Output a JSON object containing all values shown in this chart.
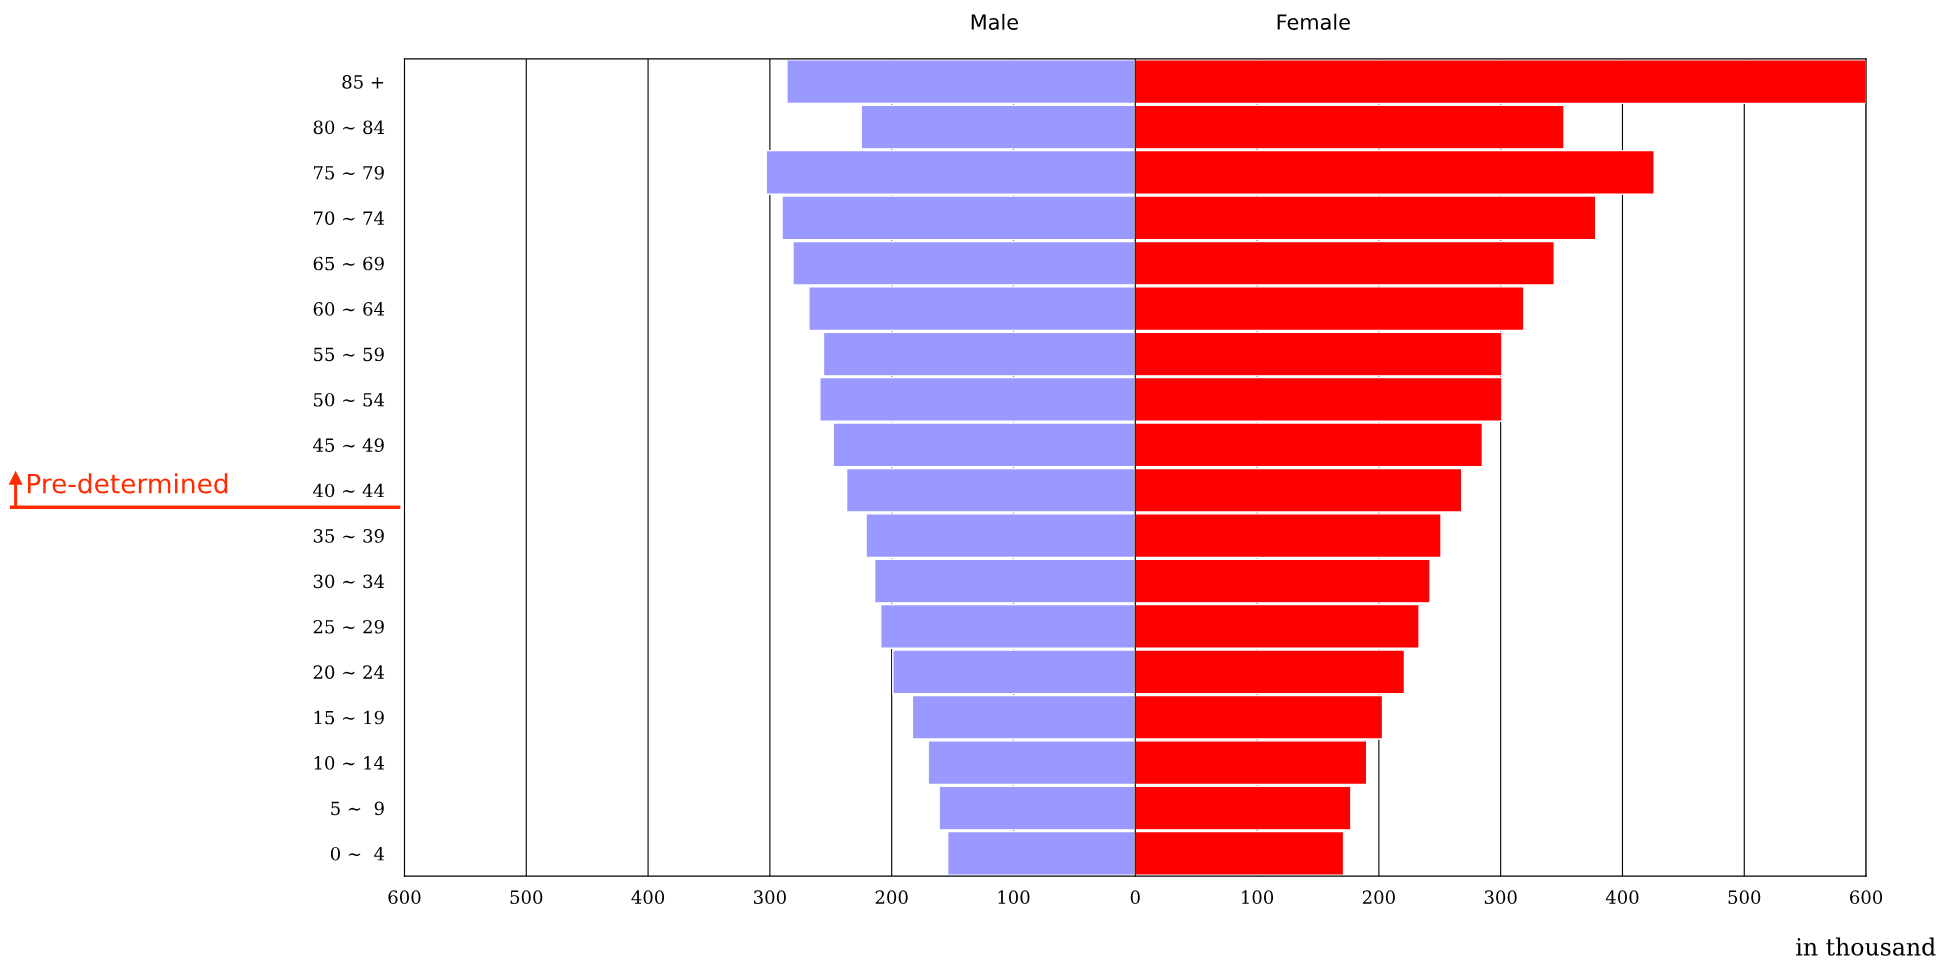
{
  "chart_data": {
    "type": "bar",
    "orientation": "horizontal",
    "stacked": true,
    "xlabel": "in thousand",
    "categories": [
      "85 +",
      "80 ∼ 84",
      "75 ∼ 79",
      "70 ∼ 74",
      "65 ∼ 69",
      "60 ∼ 64",
      "55 ∼ 59",
      "50 ∼ 54",
      "45 ∼ 49",
      "40 ∼ 44",
      "35 ∼ 39",
      "30 ∼ 34",
      "25 ∼ 29",
      "20 ∼ 24",
      "15 ∼ 19",
      "10 ∼ 14",
      "5 ∼  9",
      "0 ∼  4"
    ],
    "series": [
      {
        "name": "Male",
        "color": "#9999ff",
        "values": [
          -286,
          -225,
          -303,
          -290,
          -281,
          -268,
          -256,
          -259,
          -248,
          -237,
          -221,
          -214,
          -209,
          -199,
          -183,
          -170,
          -161,
          -154
        ]
      },
      {
        "name": "Female",
        "color": "#ff0000",
        "values": [
          600,
          352,
          426,
          378,
          344,
          319,
          301,
          301,
          285,
          268,
          251,
          242,
          233,
          221,
          203,
          190,
          177,
          171
        ]
      }
    ],
    "xlim": [
      -600,
      600
    ],
    "xticks": [
      {
        "value": -600,
        "label": "600"
      },
      {
        "value": -500,
        "label": "500"
      },
      {
        "value": -400,
        "label": "400"
      },
      {
        "value": -300,
        "label": "300"
      },
      {
        "value": -200,
        "label": "200"
      },
      {
        "value": -100,
        "label": "100"
      },
      0,
      100,
      200,
      300,
      400,
      500,
      600
    ],
    "grid": "x",
    "annotations": [
      "Pre-determined"
    ]
  }
}
